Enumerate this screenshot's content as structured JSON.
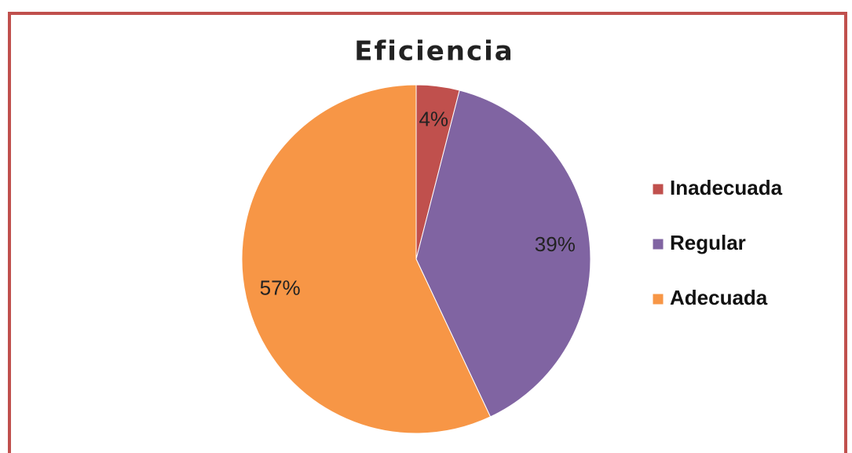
{
  "chart_data": {
    "type": "pie",
    "title": "Eficiencia",
    "categories": [
      "Inadecuada",
      "Regular",
      "Adecuada"
    ],
    "values": [
      4,
      39,
      57
    ],
    "value_labels": [
      "4%",
      "39%",
      "57%"
    ],
    "colors": [
      "#c0504d",
      "#8064a2",
      "#f79646"
    ],
    "legend": "right"
  }
}
